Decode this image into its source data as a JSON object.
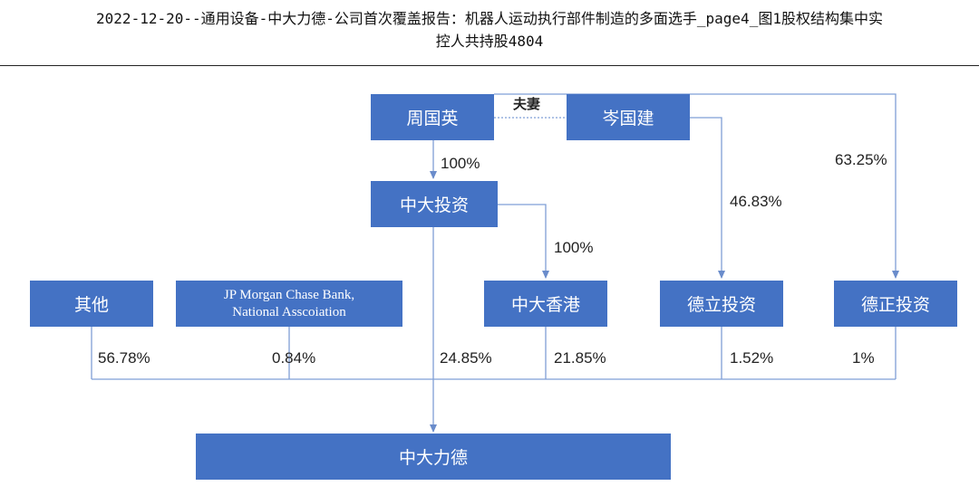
{
  "title": {
    "line1": "2022-12-20--通用设备-中大力德-公司首次覆盖报告：机器人运动执行部件制造的多面选手_page4_图1股权结构集中实",
    "line2": "控人共持股4804"
  },
  "entities": {
    "zhou_guoying": "周国英",
    "cen_guojian": "岑国建",
    "zhongda_touzi": "中大投资",
    "qita": "其他",
    "jpmorgan_line1": "JP Morgan Chase Bank,",
    "jpmorgan_line2": "National Asscoiation",
    "zhongda_hk": "中大香港",
    "deli_touzi": "德立投资",
    "dezheng_touzi": "德正投资",
    "zhongda_lide": "中大力德"
  },
  "relations": {
    "spouse": "夫妻",
    "zhou_to_touzi": "100%",
    "touzi_to_hk": "100%",
    "cen_to_deli": "46.83%",
    "cen_to_dezheng": "63.25%",
    "qita_share": "56.78%",
    "jpmorgan_share": "0.84%",
    "touzi_share": "24.85%",
    "hk_share": "21.85%",
    "deli_share": "1.52%",
    "dezheng_share": "1%"
  },
  "colors": {
    "box_fill": "#4472C4",
    "line": "#7F9FD6"
  }
}
